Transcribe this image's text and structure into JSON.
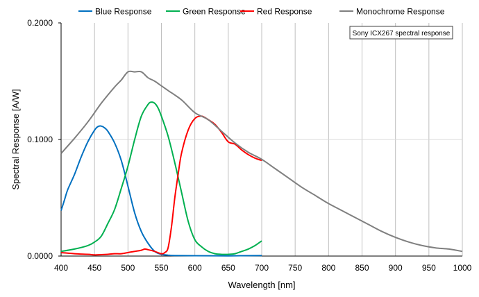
{
  "chart_data": {
    "type": "line",
    "xlabel": "Wavelength [nm]",
    "ylabel": "Spectral Response [A/W]",
    "xlim": [
      400,
      1000
    ],
    "ylim": [
      0,
      0.2
    ],
    "xticks": [
      400,
      450,
      500,
      550,
      600,
      650,
      700,
      750,
      800,
      850,
      900,
      950,
      1000
    ],
    "yticks": [
      0.0,
      0.1,
      0.2
    ],
    "ytick_labels": [
      "0.0000",
      "0.1000",
      "0.2000"
    ],
    "grid": "vertical",
    "legend_position": "top",
    "annotation": "Sony ICX267 spectral response",
    "series": [
      {
        "name": "Blue Response",
        "color": "#0070C0",
        "x": [
          400,
          405,
          410,
          420,
          430,
          440,
          450,
          455,
          460,
          465,
          470,
          480,
          490,
          500,
          510,
          520,
          530,
          540,
          550,
          560,
          570,
          600,
          650,
          700
        ],
        "y": [
          0.039,
          0.048,
          0.057,
          0.07,
          0.085,
          0.098,
          0.108,
          0.111,
          0.1115,
          0.11,
          0.107,
          0.097,
          0.082,
          0.06,
          0.037,
          0.021,
          0.011,
          0.004,
          0.0015,
          0.0008,
          0.0005,
          0.0003,
          0.0002,
          0.0005
        ]
      },
      {
        "name": "Green Response",
        "color": "#00B050",
        "x": [
          400,
          420,
          440,
          450,
          460,
          470,
          480,
          490,
          500,
          510,
          520,
          530,
          535,
          540,
          545,
          550,
          560,
          570,
          580,
          590,
          600,
          610,
          620,
          630,
          640,
          650,
          660,
          670,
          680,
          690,
          700
        ],
        "y": [
          0.004,
          0.006,
          0.009,
          0.012,
          0.017,
          0.028,
          0.04,
          0.058,
          0.077,
          0.1,
          0.12,
          0.13,
          0.132,
          0.131,
          0.127,
          0.12,
          0.103,
          0.08,
          0.055,
          0.03,
          0.014,
          0.008,
          0.004,
          0.002,
          0.0015,
          0.0015,
          0.002,
          0.004,
          0.006,
          0.009,
          0.013
        ]
      },
      {
        "name": "Red Response",
        "color": "#FF0000",
        "x": [
          400,
          420,
          440,
          450,
          460,
          470,
          480,
          490,
          500,
          510,
          520,
          525,
          530,
          540,
          550,
          555,
          560,
          565,
          570,
          575,
          580,
          590,
          600,
          610,
          620,
          630,
          640,
          650,
          660,
          670,
          680,
          690,
          700
        ],
        "y": [
          0.003,
          0.002,
          0.0015,
          0.001,
          0.0012,
          0.0015,
          0.002,
          0.002,
          0.003,
          0.004,
          0.005,
          0.006,
          0.0055,
          0.004,
          0.002,
          0.003,
          0.007,
          0.025,
          0.05,
          0.07,
          0.088,
          0.108,
          0.118,
          0.12,
          0.117,
          0.113,
          0.106,
          0.098,
          0.096,
          0.091,
          0.087,
          0.084,
          0.082
        ]
      },
      {
        "name": "Monochrome Response",
        "color": "#7F7F7F",
        "x": [
          400,
          420,
          440,
          460,
          480,
          490,
          500,
          510,
          520,
          530,
          540,
          550,
          560,
          580,
          600,
          620,
          640,
          660,
          680,
          700,
          720,
          740,
          760,
          780,
          800,
          820,
          840,
          860,
          880,
          900,
          920,
          940,
          960,
          980,
          1000
        ],
        "y": [
          0.088,
          0.101,
          0.115,
          0.131,
          0.145,
          0.151,
          0.158,
          0.158,
          0.158,
          0.153,
          0.15,
          0.146,
          0.142,
          0.134,
          0.123,
          0.117,
          0.107,
          0.097,
          0.089,
          0.083,
          0.075,
          0.067,
          0.059,
          0.052,
          0.045,
          0.039,
          0.033,
          0.027,
          0.021,
          0.016,
          0.012,
          0.009,
          0.007,
          0.006,
          0.004
        ]
      }
    ]
  }
}
